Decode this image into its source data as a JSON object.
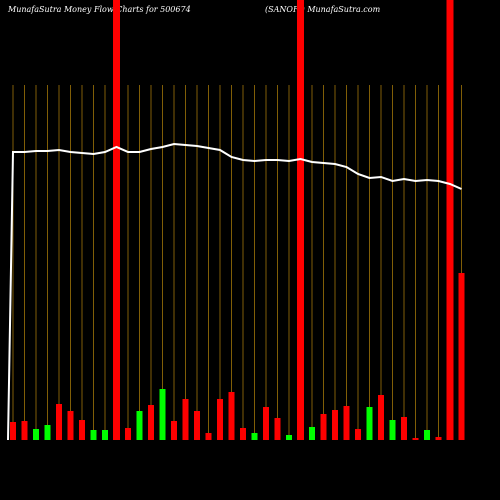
{
  "chart_data": {
    "type": "bar",
    "title": "MunafaSutra  Money Flow  Charts for 500674",
    "subtitle": "(SANOFI) MunafaSutra.com",
    "categories": [
      null,
      null,
      null,
      null,
      null,
      null,
      null,
      null,
      null,
      null,
      null,
      null,
      null,
      null,
      null,
      null,
      null,
      null,
      null,
      null,
      null,
      null,
      null,
      null,
      null,
      null,
      null,
      null,
      null,
      null,
      null,
      null,
      null,
      null,
      null,
      null,
      null,
      null,
      null,
      null
    ],
    "values": [
      18,
      19,
      11,
      15,
      36,
      29,
      20,
      10,
      10,
      null,
      12,
      29,
      35,
      51,
      19,
      41,
      29,
      7,
      41,
      48,
      12,
      7,
      33,
      22,
      5,
      null,
      13,
      26,
      30,
      34,
      11,
      33,
      45,
      20,
      23,
      2,
      10,
      3,
      null,
      167
    ],
    "colors": [
      "#ff0000",
      "#ff0000",
      "#00ff00",
      "#00ff00",
      "#ff0000",
      "#ff0000",
      "#ff0000",
      "#00ff00",
      "#00ff00",
      "#ff0000",
      "#ff0000",
      "#00ff00",
      "#ff0000",
      "#00ff00",
      "#ff0000",
      "#ff0000",
      "#ff0000",
      "#ff0000",
      "#ff0000",
      "#ff0000",
      "#ff0000",
      "#00ff00",
      "#ff0000",
      "#ff0000",
      "#00ff00",
      "#ff0000",
      "#00ff00",
      "#ff0000",
      "#ff0000",
      "#ff0000",
      "#ff0000",
      "#00ff00",
      "#ff0000",
      "#00ff00",
      "#ff0000",
      "#ff0000",
      "#00ff00",
      "#ff0000",
      "#ff0000",
      "#ff0000"
    ],
    "line": {
      "color": "#ffffff",
      "values": [
        288,
        288,
        289,
        289,
        290,
        288,
        287,
        286,
        288,
        293,
        288,
        288,
        291,
        293,
        296,
        295,
        294,
        292,
        290,
        283,
        280,
        279,
        280,
        280,
        279,
        281,
        278,
        277,
        276,
        273,
        266,
        262,
        263,
        259,
        261,
        259,
        260,
        259,
        256,
        251
      ]
    },
    "highlights": [
      9,
      25,
      38
    ],
    "highlight_color": "#ff0000",
    "grid_color": "#b8860b",
    "ylim": [
      0,
      440
    ]
  }
}
